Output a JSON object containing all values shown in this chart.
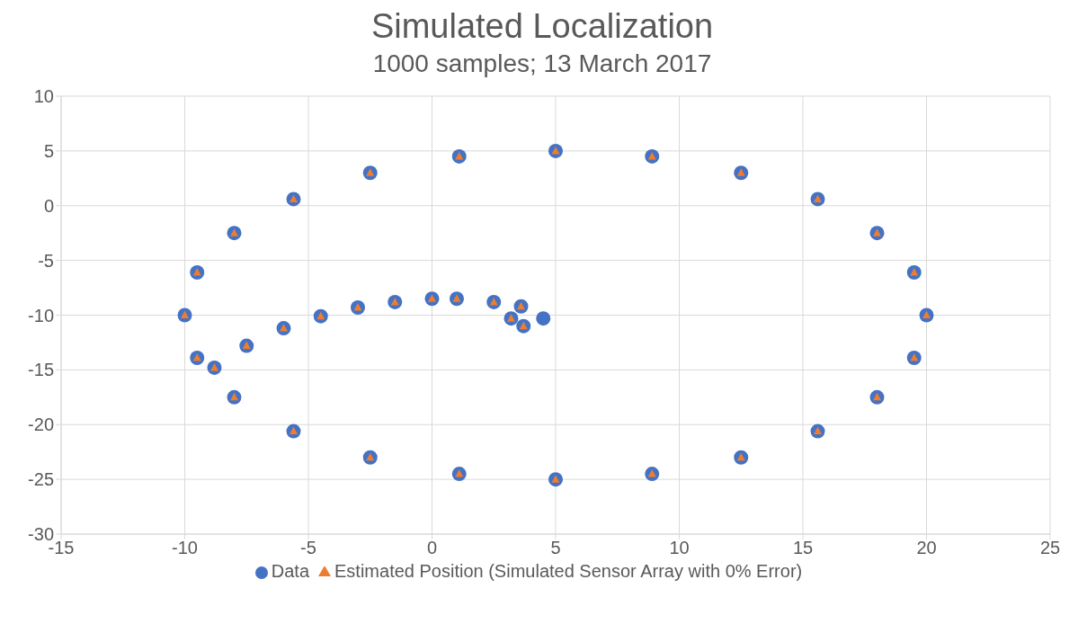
{
  "chart_data": {
    "type": "scatter",
    "title": "Simulated Localization",
    "subtitle": "1000 samples; 13 March 2017",
    "xlim": [
      -15,
      25
    ],
    "xticks": [
      -15,
      -10,
      -5,
      0,
      5,
      10,
      15,
      20,
      25
    ],
    "ylim": [
      -30,
      10
    ],
    "yticks": [
      -30,
      -25,
      -20,
      -15,
      -10,
      -5,
      0,
      5,
      10
    ],
    "grid": true,
    "legend": "bottom",
    "series": [
      {
        "name": "Data",
        "color": "#4472c4",
        "marker": "circle",
        "x": [
          4.5,
          3.7,
          3.2,
          3.6,
          2.5,
          1,
          0,
          -1.5,
          -3,
          -4.5,
          -6,
          -7.5,
          -8.8,
          -8.0,
          -5.6,
          -2.5,
          1.1,
          5,
          8.9,
          12.5,
          15.6,
          18.0,
          19.5,
          20,
          19.5,
          18.0,
          15.6,
          12.5,
          8.9,
          5,
          1.1,
          -2.5,
          -5.6,
          -8.0,
          -9.5,
          -10,
          -9.5
        ],
        "values": [
          -10.3,
          -11,
          -10.3,
          -9.2,
          -8.8,
          -8.5,
          -8.5,
          -8.8,
          -9.3,
          -10.1,
          -11.2,
          -12.8,
          -14.8,
          -17.5,
          -20.6,
          -23.0,
          -24.5,
          -25,
          -24.5,
          -23.0,
          -20.6,
          -17.5,
          -13.9,
          -10,
          -6.1,
          -2.5,
          0.6,
          3.0,
          4.5,
          5,
          4.5,
          3.0,
          0.6,
          -2.5,
          -6.1,
          -10,
          -13.9
        ]
      },
      {
        "name": "Estimated Position (Simulated Sensor Array with 0% Error)",
        "color": "#ed7d31",
        "marker": "triangle",
        "x": [
          3.7,
          3.2,
          3.6,
          2.5,
          1,
          0,
          -1.5,
          -3,
          -4.5,
          -6,
          -7.5,
          -8.8,
          -8.0,
          -5.6,
          -2.5,
          1.1,
          5,
          8.9,
          12.5,
          15.6,
          18.0,
          19.5,
          20,
          19.5,
          18.0,
          15.6,
          12.5,
          8.9,
          5,
          1.1,
          -2.5,
          -5.6,
          -8.0,
          -9.5,
          -10,
          -9.5
        ],
        "values": [
          -11,
          -10.3,
          -9.2,
          -8.8,
          -8.5,
          -8.5,
          -8.8,
          -9.3,
          -10.1,
          -11.2,
          -12.8,
          -14.8,
          -17.5,
          -20.6,
          -23.0,
          -24.5,
          -25,
          -24.5,
          -23.0,
          -20.6,
          -17.5,
          -13.9,
          -10,
          -6.1,
          -2.5,
          0.6,
          3.0,
          4.5,
          5,
          4.5,
          3.0,
          0.6,
          -2.5,
          -6.1,
          -10,
          -13.9
        ]
      }
    ]
  }
}
